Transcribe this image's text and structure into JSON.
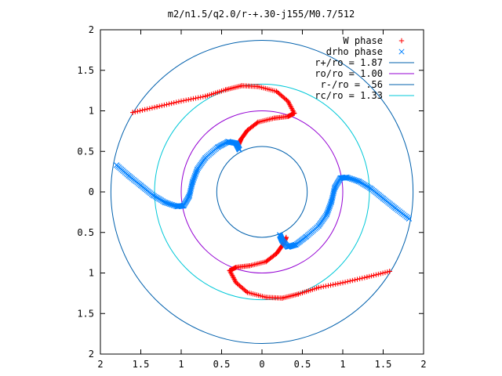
{
  "chart_data": {
    "type": "scatter",
    "title": "m2/n1.5/q2.0/r-+.30-j155/M0.7/512",
    "xlabel": "",
    "ylabel": "",
    "xlim": [
      -2,
      2
    ],
    "ylim": [
      -2,
      2
    ],
    "grid": false,
    "legend_position": "top-right",
    "x_tick_labels": [
      "2",
      "1.5",
      "1",
      "0.5",
      "0",
      "0.5",
      "1",
      "1.5",
      "2"
    ],
    "y_tick_labels": [
      "2",
      "1.5",
      "1",
      "0.5",
      "0",
      "0.5",
      "1",
      "1.5",
      "2"
    ],
    "x_ticks": [
      -2,
      -1.5,
      -1,
      -0.5,
      0,
      0.5,
      1,
      1.5,
      2
    ],
    "y_ticks": [
      2,
      1.5,
      1,
      0.5,
      0,
      -0.5,
      -1,
      -1.5,
      -2
    ],
    "series": [
      {
        "name": "W phase",
        "marker": "+",
        "color": "#ff0000",
        "points": [
          [
            -1.6,
            0.98
          ],
          [
            -1.3,
            1.05
          ],
          [
            -1.0,
            1.12
          ],
          [
            -0.7,
            1.18
          ],
          [
            -0.45,
            1.26
          ],
          [
            -0.25,
            1.31
          ],
          [
            -0.05,
            1.3
          ],
          [
            0.18,
            1.24
          ],
          [
            0.32,
            1.12
          ],
          [
            0.4,
            0.97
          ],
          [
            0.32,
            0.93
          ],
          [
            0.15,
            0.91
          ],
          [
            -0.05,
            0.86
          ],
          [
            -0.18,
            0.76
          ],
          [
            -0.26,
            0.65
          ],
          [
            -0.3,
            0.56
          ],
          [
            1.58,
            -0.98
          ],
          [
            1.3,
            -1.05
          ],
          [
            1.0,
            -1.12
          ],
          [
            0.7,
            -1.18
          ],
          [
            0.45,
            -1.26
          ],
          [
            0.25,
            -1.31
          ],
          [
            0.05,
            -1.3
          ],
          [
            -0.18,
            -1.24
          ],
          [
            -0.32,
            -1.12
          ],
          [
            -0.4,
            -0.97
          ],
          [
            -0.32,
            -0.93
          ],
          [
            -0.15,
            -0.91
          ],
          [
            0.05,
            -0.86
          ],
          [
            0.18,
            -0.76
          ],
          [
            0.26,
            -0.65
          ],
          [
            0.3,
            -0.56
          ]
        ]
      },
      {
        "name": "drho phase",
        "marker": "x",
        "color": "#0080ff",
        "points": [
          [
            -1.8,
            0.33
          ],
          [
            -1.65,
            0.2
          ],
          [
            -1.5,
            0.08
          ],
          [
            -1.35,
            -0.04
          ],
          [
            -1.2,
            -0.13
          ],
          [
            -1.05,
            -0.18
          ],
          [
            -0.97,
            -0.17
          ],
          [
            -0.9,
            -0.05
          ],
          [
            -0.86,
            0.12
          ],
          [
            -0.8,
            0.28
          ],
          [
            -0.7,
            0.42
          ],
          [
            -0.55,
            0.55
          ],
          [
            -0.42,
            0.62
          ],
          [
            -0.32,
            0.6
          ],
          [
            -0.28,
            0.52
          ],
          [
            1.82,
            -0.33
          ],
          [
            1.65,
            -0.2
          ],
          [
            1.5,
            -0.08
          ],
          [
            1.35,
            0.04
          ],
          [
            1.2,
            0.13
          ],
          [
            1.05,
            0.18
          ],
          [
            0.97,
            0.17
          ],
          [
            0.9,
            0.05
          ],
          [
            0.86,
            -0.12
          ],
          [
            0.8,
            -0.28
          ],
          [
            0.7,
            -0.42
          ],
          [
            0.55,
            -0.55
          ],
          [
            0.42,
            -0.65
          ],
          [
            0.32,
            -0.68
          ],
          [
            0.25,
            -0.6
          ],
          [
            0.22,
            -0.53
          ]
        ]
      },
      {
        "name": "r+/ro = 1.87",
        "type": "circle",
        "radius": 1.87,
        "color": "#0060ad"
      },
      {
        "name": "ro/ro = 1.00",
        "type": "circle",
        "radius": 1.0,
        "color": "#9400d3"
      },
      {
        "name": "r-/ro = .56",
        "type": "circle",
        "radius": 0.56,
        "color": "#0060ad"
      },
      {
        "name": "rc/ro = 1.33",
        "type": "circle",
        "radius": 1.33,
        "color": "#00c8d8"
      }
    ]
  }
}
